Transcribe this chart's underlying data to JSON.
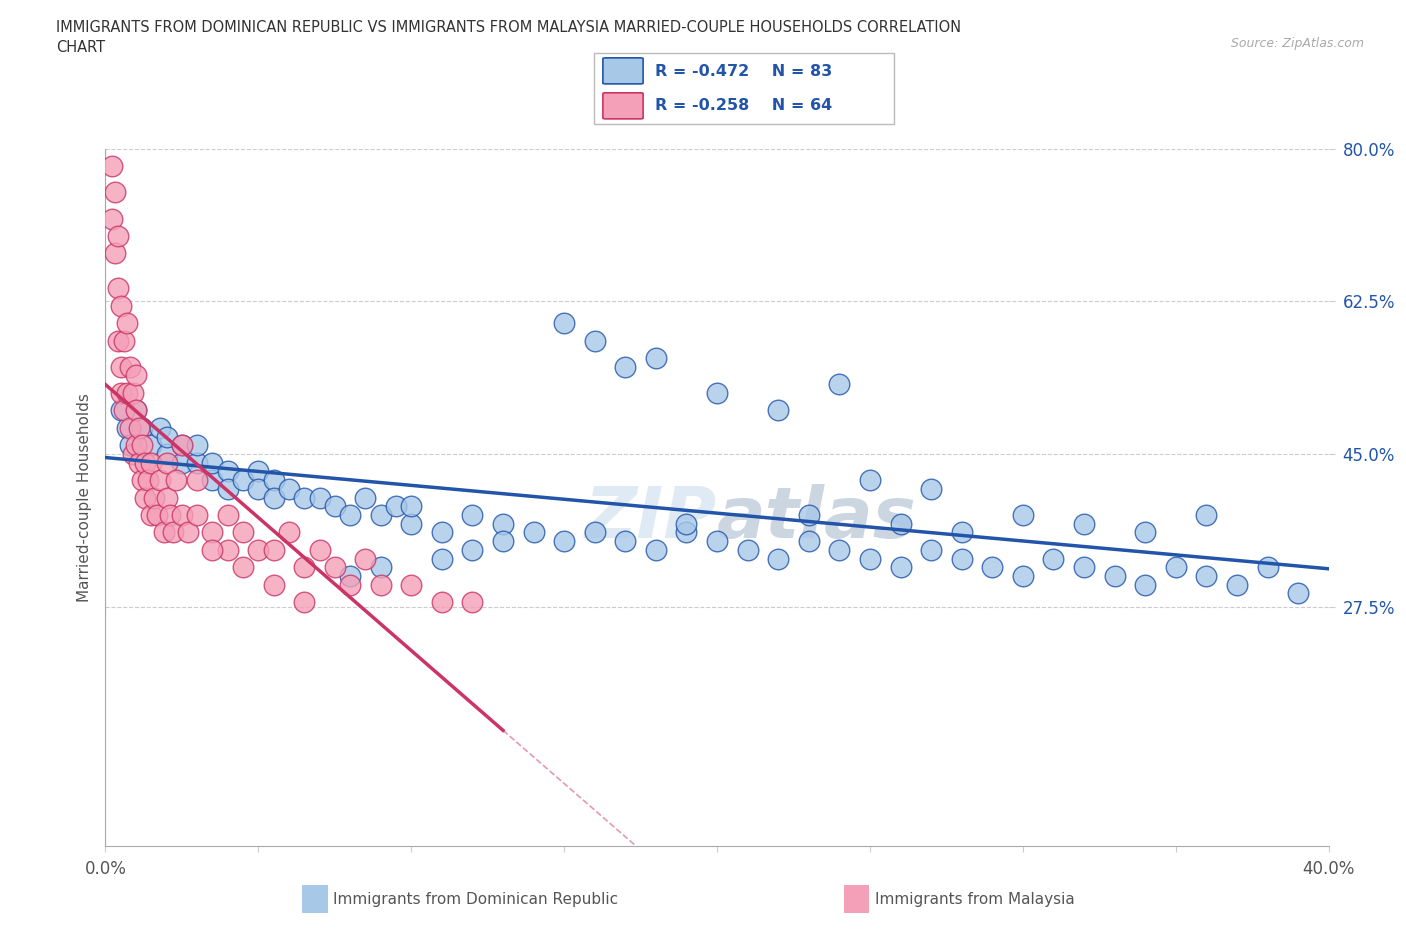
{
  "title_line1": "IMMIGRANTS FROM DOMINICAN REPUBLIC VS IMMIGRANTS FROM MALAYSIA MARRIED-COUPLE HOUSEHOLDS CORRELATION",
  "title_line2": "CHART",
  "source_text": "Source: ZipAtlas.com",
  "ylabel": "Married-couple Households",
  "xlim": [
    0.0,
    0.4
  ],
  "ylim": [
    0.0,
    0.8
  ],
  "color_blue": "#a8c8e8",
  "color_pink": "#f4a0b8",
  "line_blue": "#2255aa",
  "line_pink": "#cc3366",
  "watermark_top": "ZIP",
  "watermark_bot": "atlas",
  "R_blue": -0.472,
  "N_blue": 83,
  "R_pink": -0.258,
  "N_pink": 64,
  "blue_x": [
    0.005,
    0.007,
    0.008,
    0.01,
    0.012,
    0.015,
    0.018,
    0.02,
    0.02,
    0.025,
    0.025,
    0.03,
    0.03,
    0.035,
    0.035,
    0.04,
    0.04,
    0.045,
    0.05,
    0.05,
    0.055,
    0.055,
    0.06,
    0.065,
    0.07,
    0.075,
    0.08,
    0.085,
    0.09,
    0.095,
    0.1,
    0.1,
    0.11,
    0.12,
    0.13,
    0.14,
    0.15,
    0.16,
    0.17,
    0.18,
    0.19,
    0.2,
    0.21,
    0.22,
    0.23,
    0.24,
    0.25,
    0.26,
    0.27,
    0.28,
    0.29,
    0.3,
    0.31,
    0.32,
    0.33,
    0.34,
    0.35,
    0.36,
    0.37,
    0.38,
    0.39,
    0.2,
    0.22,
    0.24,
    0.15,
    0.16,
    0.17,
    0.18,
    0.25,
    0.27,
    0.3,
    0.32,
    0.34,
    0.36,
    0.28,
    0.26,
    0.23,
    0.19,
    0.13,
    0.12,
    0.11,
    0.09,
    0.08
  ],
  "blue_y": [
    0.5,
    0.48,
    0.46,
    0.5,
    0.48,
    0.46,
    0.48,
    0.45,
    0.47,
    0.46,
    0.44,
    0.44,
    0.46,
    0.42,
    0.44,
    0.43,
    0.41,
    0.42,
    0.43,
    0.41,
    0.42,
    0.4,
    0.41,
    0.4,
    0.4,
    0.39,
    0.38,
    0.4,
    0.38,
    0.39,
    0.37,
    0.39,
    0.36,
    0.38,
    0.37,
    0.36,
    0.35,
    0.36,
    0.35,
    0.34,
    0.36,
    0.35,
    0.34,
    0.33,
    0.35,
    0.34,
    0.33,
    0.32,
    0.34,
    0.33,
    0.32,
    0.31,
    0.33,
    0.32,
    0.31,
    0.3,
    0.32,
    0.31,
    0.3,
    0.32,
    0.29,
    0.52,
    0.5,
    0.53,
    0.6,
    0.58,
    0.55,
    0.56,
    0.42,
    0.41,
    0.38,
    0.37,
    0.36,
    0.38,
    0.36,
    0.37,
    0.38,
    0.37,
    0.35,
    0.34,
    0.33,
    0.32,
    0.31
  ],
  "pink_x": [
    0.002,
    0.003,
    0.004,
    0.004,
    0.005,
    0.005,
    0.005,
    0.006,
    0.006,
    0.007,
    0.007,
    0.008,
    0.008,
    0.009,
    0.009,
    0.01,
    0.01,
    0.01,
    0.011,
    0.011,
    0.012,
    0.012,
    0.013,
    0.013,
    0.014,
    0.015,
    0.015,
    0.016,
    0.017,
    0.018,
    0.019,
    0.02,
    0.02,
    0.021,
    0.022,
    0.023,
    0.025,
    0.027,
    0.03,
    0.03,
    0.035,
    0.04,
    0.04,
    0.045,
    0.05,
    0.055,
    0.06,
    0.065,
    0.07,
    0.075,
    0.08,
    0.085,
    0.09,
    0.1,
    0.11,
    0.12,
    0.025,
    0.035,
    0.045,
    0.055,
    0.065,
    0.002,
    0.003,
    0.004
  ],
  "pink_y": [
    0.72,
    0.68,
    0.64,
    0.58,
    0.55,
    0.52,
    0.62,
    0.5,
    0.58,
    0.52,
    0.6,
    0.48,
    0.55,
    0.45,
    0.52,
    0.46,
    0.5,
    0.54,
    0.44,
    0.48,
    0.42,
    0.46,
    0.4,
    0.44,
    0.42,
    0.38,
    0.44,
    0.4,
    0.38,
    0.42,
    0.36,
    0.4,
    0.44,
    0.38,
    0.36,
    0.42,
    0.38,
    0.36,
    0.38,
    0.42,
    0.36,
    0.38,
    0.34,
    0.36,
    0.34,
    0.34,
    0.36,
    0.32,
    0.34,
    0.32,
    0.3,
    0.33,
    0.3,
    0.3,
    0.28,
    0.28,
    0.46,
    0.34,
    0.32,
    0.3,
    0.28,
    0.78,
    0.75,
    0.7
  ]
}
